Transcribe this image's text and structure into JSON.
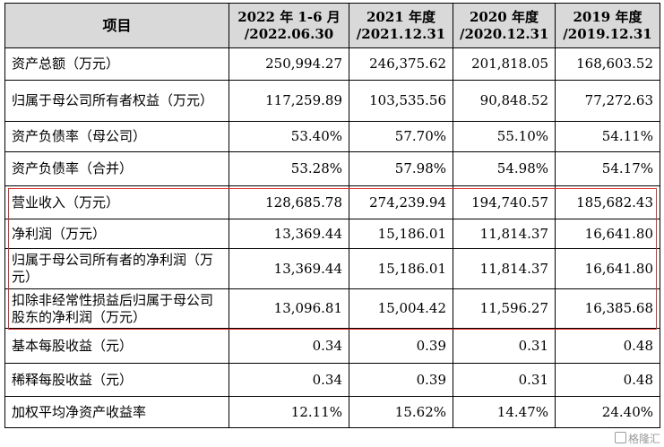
{
  "header": {
    "item": "项目",
    "periods": [
      {
        "line1": "2022 年 1-6 月",
        "line2": "/2022.06.30"
      },
      {
        "line1": "2021 年度",
        "line2": "/2021.12.31"
      },
      {
        "line1": "2020 年度",
        "line2": "/2020.12.31"
      },
      {
        "line1": "2019 年度",
        "line2": "/2019.12.31"
      }
    ]
  },
  "rows": [
    {
      "label": "资产总额（万元）",
      "values": [
        "250,994.27",
        "246,375.62",
        "201,818.05",
        "168,603.52"
      ]
    },
    {
      "label": "归属于母公司所有者权益（万元）",
      "values": [
        "117,259.89",
        "103,535.56",
        "90,848.52",
        "77,272.63"
      ]
    },
    {
      "label": "资产负债率（母公司）",
      "values": [
        "53.40%",
        "57.70%",
        "55.10%",
        "54.11%"
      ]
    },
    {
      "label": "资产负债率（合并）",
      "values": [
        "53.28%",
        "57.98%",
        "54.98%",
        "54.17%"
      ]
    },
    {
      "label": "营业收入（万元）",
      "values": [
        "128,685.78",
        "274,239.94",
        "194,740.57",
        "185,682.43"
      ]
    },
    {
      "label": "净利润（万元）",
      "values": [
        "13,369.44",
        "15,186.01",
        "11,814.37",
        "16,641.80"
      ]
    },
    {
      "label": "归属于母公司所有者的净利润（万元）",
      "values": [
        "13,369.44",
        "15,186.01",
        "11,814.37",
        "16,641.80"
      ]
    },
    {
      "label": "扣除非经常性损益后归属于母公司股东的净利润（万元）",
      "values": [
        "13,096.81",
        "15,004.42",
        "11,596.27",
        "16,385.68"
      ]
    },
    {
      "label": "基本每股收益（元）",
      "values": [
        "0.34",
        "0.39",
        "0.31",
        "0.48"
      ]
    },
    {
      "label": "稀释每股收益（元）",
      "values": [
        "0.34",
        "0.39",
        "0.31",
        "0.48"
      ]
    },
    {
      "label": "加权平均净资产收益率",
      "values": [
        "12.11%",
        "15.62%",
        "14.47%",
        "24.40%"
      ]
    }
  ],
  "highlight_color": "#e0302a",
  "watermark": "格隆汇"
}
